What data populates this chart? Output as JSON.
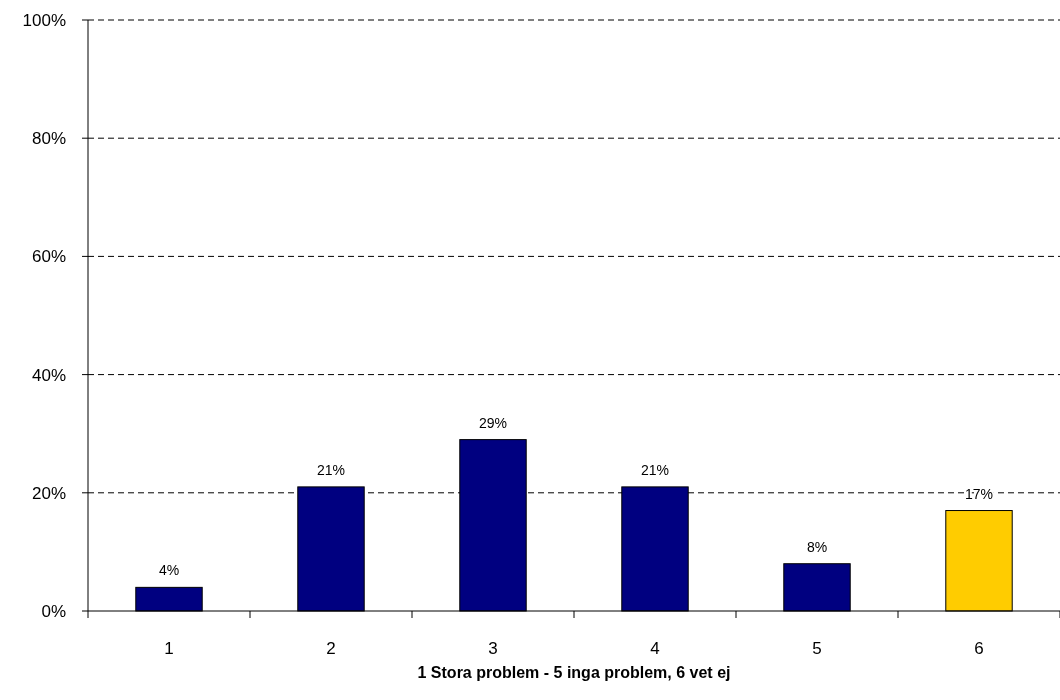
{
  "chart_data": {
    "type": "bar",
    "xlabel": "1 Stora problem - 5 inga problem, 6 vet ej",
    "categories": [
      "1",
      "2",
      "3",
      "4",
      "5",
      "6"
    ],
    "values": [
      4,
      21,
      29,
      21,
      8,
      17
    ],
    "colors": [
      "#000080",
      "#000080",
      "#000080",
      "#000080",
      "#000080",
      "#ffcc00"
    ],
    "value_labels": [
      "4%",
      "21%",
      "29%",
      "21%",
      "8%",
      "17%"
    ],
    "ylim": [
      0,
      100
    ],
    "yticks": [
      {
        "value": 0,
        "label": "0%"
      },
      {
        "value": 20,
        "label": "20%"
      },
      {
        "value": 40,
        "label": "40%"
      },
      {
        "value": 60,
        "label": "60%"
      },
      {
        "value": 80,
        "label": "80%"
      },
      {
        "value": 100,
        "label": "100%"
      }
    ],
    "grid": "y"
  }
}
